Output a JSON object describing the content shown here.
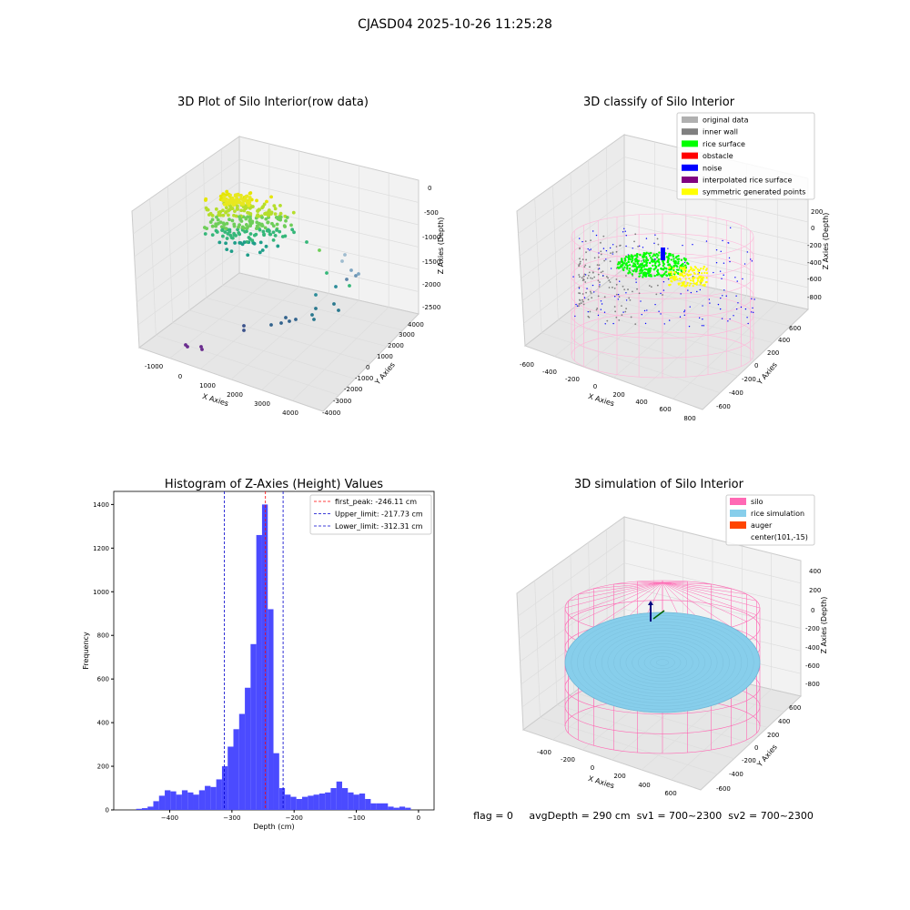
{
  "suptitle": "CJASD04 2025-10-26 11:25:28",
  "status_line": "flag = 0     avgDepth = 290 cm  sv1 = 700~2300  sv2 = 700~2300",
  "colors": {
    "hist_bar": "#4b4bff",
    "peak_line": "#ff0000",
    "limit_line": "#0000cc",
    "silo": "#ff69b4",
    "rice_sim": "#87ceeb",
    "auger": "#ff4500",
    "rice_surface": "#00ff00",
    "noise": "#0000ff",
    "inner_wall": "#808080",
    "symmetric": "#ffff00",
    "pane": "#f2f2f2",
    "grid": "#d9d9d9"
  },
  "chart_data": [
    {
      "id": "raw",
      "type": "scatter",
      "title": "3D Plot of Silo Interior(row data)",
      "xlabel": "X Axies",
      "ylabel": "Y Axies",
      "zlabel": "Z Axies (Depth)",
      "xticks": [
        "-1000",
        "0",
        "1000",
        "2000",
        "3000",
        "4000"
      ],
      "yticks": [
        "-4000",
        "-3000",
        "-2000",
        "-1000",
        "0",
        "1000",
        "2000",
        "3000",
        "4000"
      ],
      "zticks": [
        "0",
        "-500",
        "-1000",
        "-1500",
        "-2000",
        "-2500"
      ]
    },
    {
      "id": "classify",
      "type": "scatter",
      "title": "3D classify of Silo Interior",
      "xlabel": "X Axies",
      "ylabel": "Y Axies",
      "zlabel": "Z Axies (Depth)",
      "xticks": [
        "-600",
        "-400",
        "-200",
        "0",
        "200",
        "400",
        "600",
        "800"
      ],
      "yticks": [
        "-600",
        "-400",
        "-200",
        "0",
        "200",
        "400",
        "600"
      ],
      "zticks": [
        "200",
        "0",
        "-200",
        "-400",
        "-600",
        "-800"
      ],
      "legend_position": "upper right",
      "legend": [
        {
          "label": "original data",
          "color": "#b0b0b0"
        },
        {
          "label": "inner wall",
          "color": "#808080"
        },
        {
          "label": "rice surface",
          "color": "#00ff00"
        },
        {
          "label": "obstacle",
          "color": "#ff0000"
        },
        {
          "label": "noise",
          "color": "#0000ff"
        },
        {
          "label": "interpolated rice surface",
          "color": "#800080"
        },
        {
          "label": "symmetric generated points",
          "color": "#ffff00"
        }
      ]
    },
    {
      "id": "hist",
      "type": "bar",
      "title": "Histogram of Z-Axies (Height) Values",
      "xlabel": "Depth (cm)",
      "ylabel": "Frequency",
      "xlim": [
        -490,
        25
      ],
      "ylim": [
        0,
        1460
      ],
      "xticks": [
        -400,
        -300,
        -200,
        -100,
        0
      ],
      "yticks": [
        0,
        200,
        400,
        600,
        800,
        1000,
        1200,
        1400
      ],
      "bin_start": -454,
      "bin_width": 9.2,
      "values": [
        5,
        8,
        15,
        40,
        65,
        90,
        85,
        70,
        90,
        80,
        70,
        90,
        110,
        105,
        140,
        200,
        290,
        370,
        440,
        560,
        760,
        1260,
        1400,
        920,
        260,
        100,
        70,
        60,
        50,
        60,
        65,
        70,
        75,
        80,
        100,
        130,
        100,
        80,
        70,
        75,
        50,
        30,
        30,
        30,
        15,
        10,
        15,
        10
      ],
      "vlines": [
        {
          "name": "first_peak: -246.11 cm",
          "x": -246.11,
          "color": "#ff0000"
        },
        {
          "name": "Upper_limit: -217.73 cm",
          "x": -217.73,
          "color": "#0000cc"
        },
        {
          "name": "Lower_limit: -312.31 cm",
          "x": -312.31,
          "color": "#0000cc"
        }
      ],
      "legend_position": "upper right"
    },
    {
      "id": "simulation",
      "type": "scatter",
      "title": "3D simulation of Silo Interior",
      "xlabel": "X Axies",
      "ylabel": "Y Axies",
      "zlabel": "Z Axies (Depth)",
      "xticks": [
        "-400",
        "-200",
        "0",
        "200",
        "400",
        "600"
      ],
      "yticks": [
        "-600",
        "-400",
        "-200",
        "0",
        "200",
        "400",
        "600"
      ],
      "zticks": [
        "400",
        "200",
        "0",
        "-200",
        "-400",
        "-600",
        "-800"
      ],
      "legend_position": "upper right",
      "legend": [
        {
          "label": "silo",
          "color": "#ff69b4"
        },
        {
          "label": "rice simulation",
          "color": "#87ceeb"
        },
        {
          "label": "auger",
          "color": "#ff4500"
        },
        {
          "label": "center(101,-15)",
          "color": ""
        }
      ]
    }
  ]
}
